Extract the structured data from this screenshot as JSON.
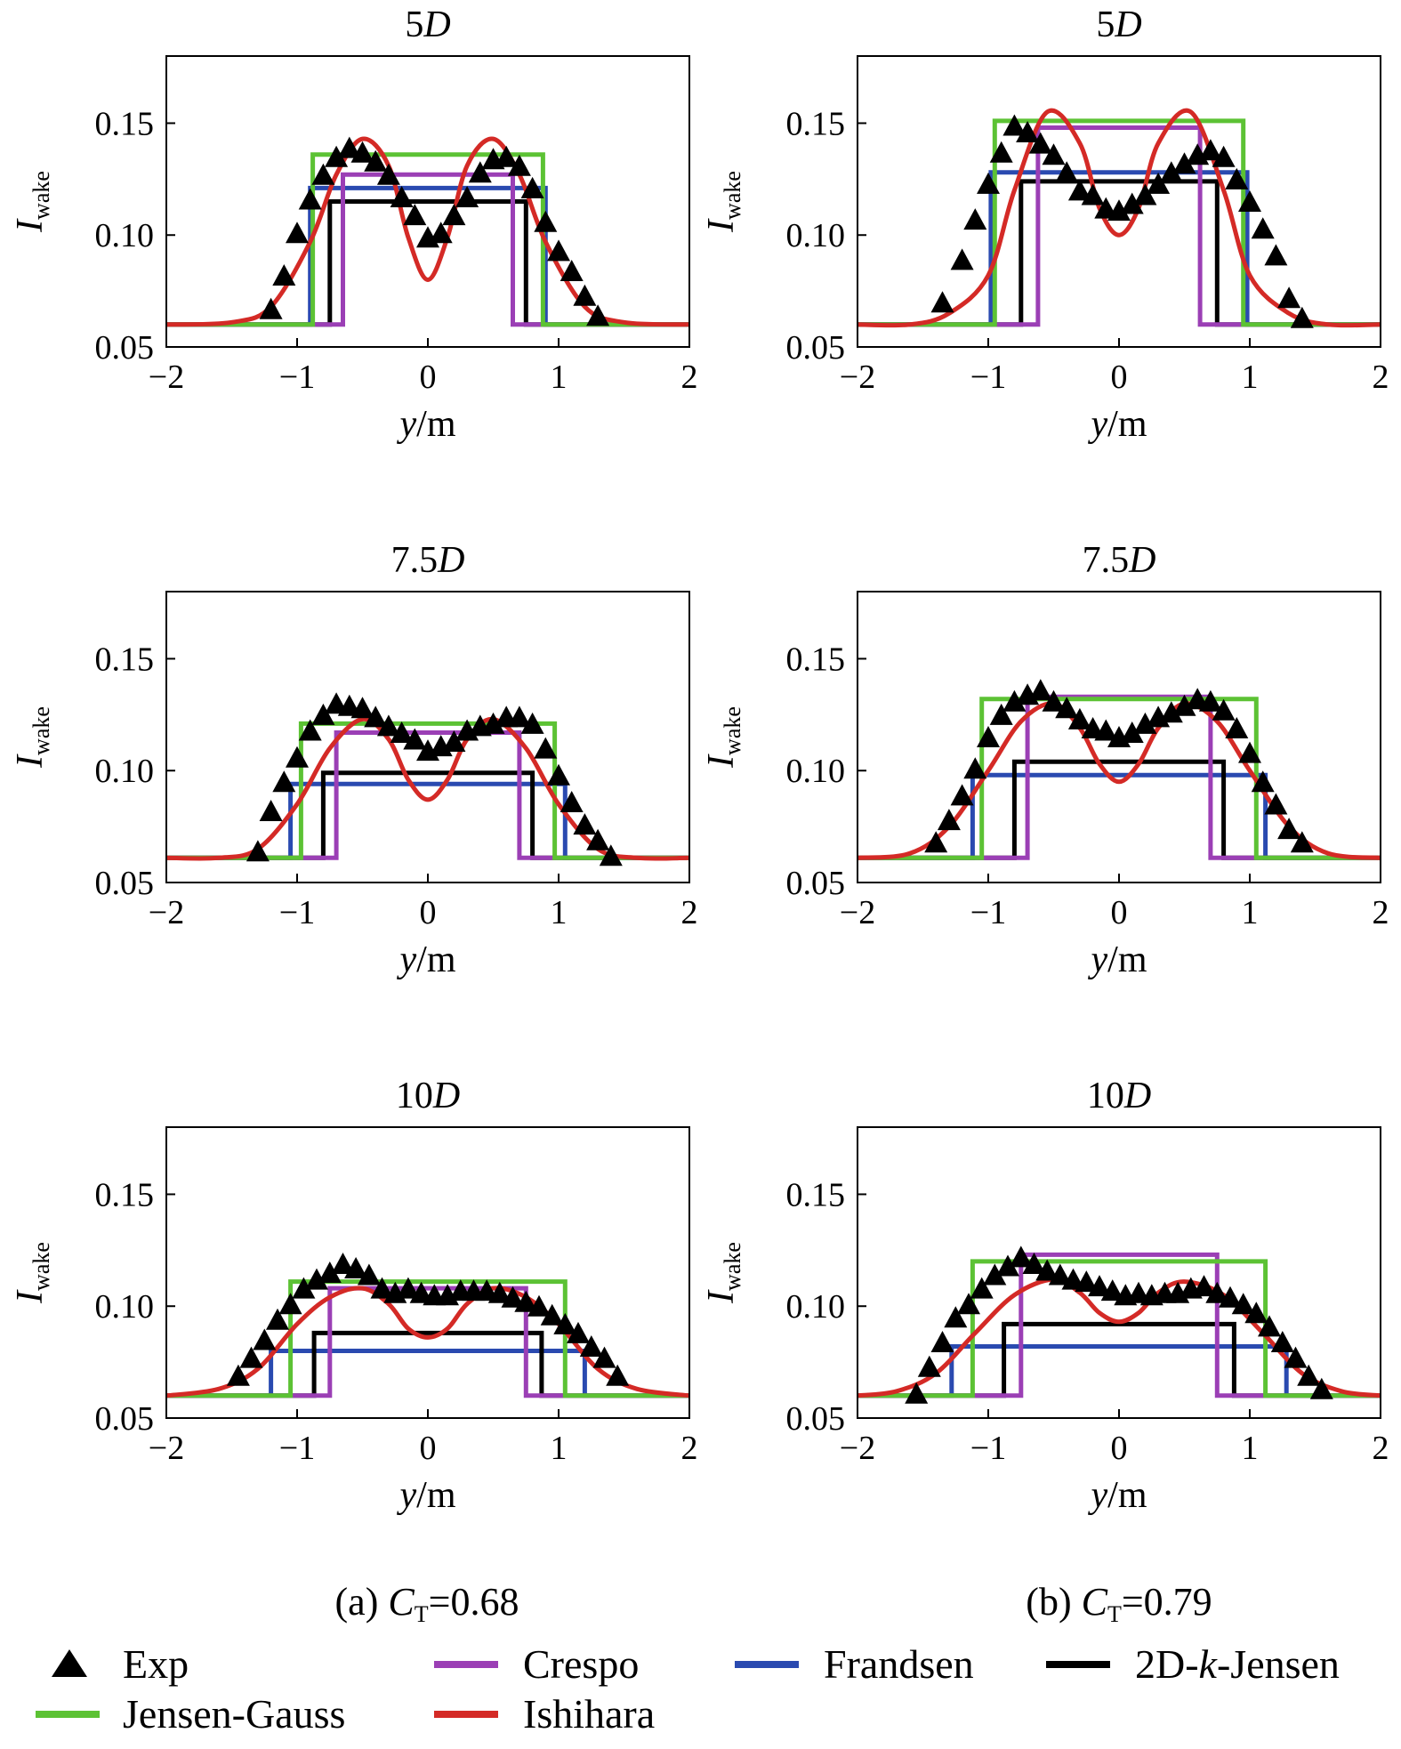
{
  "figure": {
    "captions": [
      {
        "prefix": "(a) ",
        "var": "C",
        "sub": "T",
        "value": "=0.68"
      },
      {
        "prefix": "(b) ",
        "var": "C",
        "sub": "T",
        "value": "=0.79"
      }
    ],
    "legend": [
      {
        "label": "Exp",
        "marker": "triangle",
        "color": "#000000"
      },
      {
        "label": "Crespo",
        "marker": "line",
        "color": "#9b3fb5"
      },
      {
        "label": "Frandsen",
        "marker": "line",
        "color": "#2a4ab0"
      },
      {
        "label_parts": [
          "2D-",
          "k",
          "-Jensen"
        ],
        "label": "2D-k-Jensen",
        "marker": "line",
        "color": "#000000"
      },
      {
        "label": "Jensen-Gauss",
        "marker": "line",
        "color": "#5cc234"
      },
      {
        "label": "Ishihara",
        "marker": "line",
        "color": "#d42a26"
      }
    ],
    "colors": {
      "Exp": "#000000",
      "Jensen-Gauss": "#5cc234",
      "Crespo": "#9b3fb5",
      "Frandsen": "#2a4ab0",
      "2D-k-Jensen": "#000000",
      "Ishihara": "#d42a26"
    }
  },
  "chart_data": [
    {
      "type": "line",
      "panel": "a",
      "title_num": "5",
      "title_var": "D",
      "xlabel_var": "y",
      "xlabel_unit": "/m",
      "ylabel_var": "I",
      "ylabel_sub": "wake",
      "xlim": [
        -2,
        2
      ],
      "ylim": [
        0.05,
        0.18
      ],
      "xticks": [
        "−2",
        "−1",
        "0",
        "1",
        "2"
      ],
      "yticks": [
        "0.05",
        "0.10",
        "0.15"
      ],
      "ambient": 0.06,
      "steps": {
        "Jensen-Gauss": {
          "half_width": 0.88,
          "value": 0.136
        },
        "Crespo": {
          "half_width": 0.65,
          "value": 0.127
        },
        "Frandsen": {
          "half_width": 0.9,
          "value": 0.121
        },
        "2D-k-Jensen": {
          "half_width": 0.75,
          "value": 0.115
        }
      },
      "ishihara": {
        "x": [
          -1.5,
          -1.2,
          -0.9,
          -0.7,
          -0.5,
          -0.3,
          -0.15,
          0,
          0.15,
          0.3,
          0.5,
          0.7,
          0.9,
          1.2,
          1.5
        ],
        "y": [
          0.061,
          0.068,
          0.097,
          0.127,
          0.143,
          0.131,
          0.099,
          0.08,
          0.099,
          0.131,
          0.143,
          0.127,
          0.097,
          0.068,
          0.061
        ]
      },
      "exp": {
        "x": [
          -1.2,
          -1.1,
          -1.0,
          -0.9,
          -0.8,
          -0.7,
          -0.6,
          -0.5,
          -0.4,
          -0.3,
          -0.2,
          -0.1,
          0.0,
          0.1,
          0.2,
          0.3,
          0.4,
          0.5,
          0.6,
          0.7,
          0.8,
          0.9,
          1.0,
          1.1,
          1.2,
          1.3
        ],
        "y": [
          0.066,
          0.081,
          0.1,
          0.115,
          0.126,
          0.134,
          0.138,
          0.136,
          0.132,
          0.126,
          0.116,
          0.108,
          0.098,
          0.1,
          0.108,
          0.116,
          0.127,
          0.133,
          0.134,
          0.13,
          0.12,
          0.105,
          0.092,
          0.083,
          0.072,
          0.063
        ]
      }
    },
    {
      "type": "line",
      "panel": "b",
      "title_num": "5",
      "title_var": "D",
      "xlabel_var": "y",
      "xlabel_unit": "/m",
      "ylabel_var": "I",
      "ylabel_sub": "wake",
      "xlim": [
        -2,
        2
      ],
      "ylim": [
        0.05,
        0.18
      ],
      "xticks": [
        "−2",
        "−1",
        "0",
        "1",
        "2"
      ],
      "yticks": [
        "0.05",
        "0.10",
        "0.15"
      ],
      "ambient": 0.06,
      "steps": {
        "Jensen-Gauss": {
          "half_width": 0.95,
          "value": 0.151
        },
        "Crespo": {
          "half_width": 0.62,
          "value": 0.148
        },
        "Frandsen": {
          "half_width": 0.98,
          "value": 0.128
        },
        "2D-k-Jensen": {
          "half_width": 0.75,
          "value": 0.124
        }
      },
      "ishihara": {
        "x": [
          -1.6,
          -1.3,
          -1.0,
          -0.8,
          -0.55,
          -0.3,
          -0.15,
          0,
          0.15,
          0.3,
          0.55,
          0.8,
          1.0,
          1.3,
          1.6
        ],
        "y": [
          0.06,
          0.065,
          0.082,
          0.12,
          0.155,
          0.141,
          0.112,
          0.1,
          0.112,
          0.141,
          0.155,
          0.12,
          0.082,
          0.065,
          0.06
        ]
      },
      "exp": {
        "x": [
          -1.35,
          -1.2,
          -1.1,
          -1.0,
          -0.9,
          -0.8,
          -0.7,
          -0.6,
          -0.5,
          -0.4,
          -0.3,
          -0.2,
          -0.1,
          0.0,
          0.1,
          0.2,
          0.3,
          0.4,
          0.5,
          0.6,
          0.7,
          0.8,
          0.9,
          1.0,
          1.1,
          1.2,
          1.3,
          1.4
        ],
        "y": [
          0.069,
          0.088,
          0.106,
          0.122,
          0.136,
          0.148,
          0.145,
          0.14,
          0.135,
          0.127,
          0.119,
          0.117,
          0.111,
          0.11,
          0.113,
          0.117,
          0.122,
          0.127,
          0.131,
          0.135,
          0.137,
          0.134,
          0.124,
          0.114,
          0.102,
          0.09,
          0.071,
          0.062
        ]
      }
    },
    {
      "type": "line",
      "panel": "a",
      "title_num": "7.5",
      "title_var": "D",
      "xlabel_var": "y",
      "xlabel_unit": "/m",
      "ylabel_var": "I",
      "ylabel_sub": "wake",
      "xlim": [
        -2,
        2
      ],
      "ylim": [
        0.05,
        0.18
      ],
      "xticks": [
        "−2",
        "−1",
        "0",
        "1",
        "2"
      ],
      "yticks": [
        "0.05",
        "0.10",
        "0.15"
      ],
      "ambient": 0.061,
      "steps": {
        "Jensen-Gauss": {
          "half_width": 0.97,
          "value": 0.121
        },
        "Crespo": {
          "half_width": 0.7,
          "value": 0.117
        },
        "Frandsen": {
          "half_width": 1.05,
          "value": 0.094
        },
        "2D-k-Jensen": {
          "half_width": 0.8,
          "value": 0.099
        }
      },
      "ishihara": {
        "x": [
          -1.6,
          -1.3,
          -1.0,
          -0.75,
          -0.5,
          -0.3,
          -0.15,
          0,
          0.15,
          0.3,
          0.5,
          0.75,
          1.0,
          1.3,
          1.6
        ],
        "y": [
          0.061,
          0.065,
          0.085,
          0.11,
          0.123,
          0.114,
          0.096,
          0.087,
          0.096,
          0.114,
          0.123,
          0.11,
          0.085,
          0.065,
          0.061
        ]
      },
      "exp": {
        "x": [
          -1.3,
          -1.2,
          -1.1,
          -1.0,
          -0.9,
          -0.8,
          -0.7,
          -0.6,
          -0.5,
          -0.4,
          -0.3,
          -0.2,
          -0.1,
          0.0,
          0.1,
          0.2,
          0.3,
          0.4,
          0.5,
          0.6,
          0.7,
          0.8,
          0.9,
          1.0,
          1.1,
          1.2,
          1.3,
          1.4
        ],
        "y": [
          0.063,
          0.081,
          0.094,
          0.105,
          0.117,
          0.124,
          0.129,
          0.128,
          0.127,
          0.123,
          0.119,
          0.116,
          0.113,
          0.108,
          0.11,
          0.112,
          0.117,
          0.119,
          0.12,
          0.123,
          0.123,
          0.12,
          0.109,
          0.097,
          0.085,
          0.075,
          0.068,
          0.061
        ]
      }
    },
    {
      "type": "line",
      "panel": "b",
      "title_num": "7.5",
      "title_var": "D",
      "xlabel_var": "y",
      "xlabel_unit": "/m",
      "ylabel_var": "I",
      "ylabel_sub": "wake",
      "xlim": [
        -2,
        2
      ],
      "ylim": [
        0.05,
        0.18
      ],
      "xticks": [
        "−2",
        "−1",
        "0",
        "1",
        "2"
      ],
      "yticks": [
        "0.05",
        "0.10",
        "0.15"
      ],
      "ambient": 0.061,
      "steps": {
        "Jensen-Gauss": {
          "half_width": 1.05,
          "value": 0.132
        },
        "Crespo": {
          "half_width": 0.7,
          "value": 0.133
        },
        "Frandsen": {
          "half_width": 1.12,
          "value": 0.098
        },
        "2D-k-Jensen": {
          "half_width": 0.8,
          "value": 0.104
        }
      },
      "ishihara": {
        "x": [
          -2.0,
          -1.6,
          -1.3,
          -1.0,
          -0.75,
          -0.5,
          -0.3,
          -0.15,
          0,
          0.15,
          0.3,
          0.5,
          0.75,
          1.0,
          1.3,
          1.6,
          2.0
        ],
        "y": [
          0.061,
          0.063,
          0.075,
          0.1,
          0.122,
          0.13,
          0.119,
          0.103,
          0.095,
          0.103,
          0.119,
          0.13,
          0.122,
          0.1,
          0.075,
          0.063,
          0.061
        ]
      },
      "exp": {
        "x": [
          -1.4,
          -1.3,
          -1.2,
          -1.1,
          -1.0,
          -0.9,
          -0.8,
          -0.7,
          -0.6,
          -0.5,
          -0.4,
          -0.3,
          -0.2,
          -0.1,
          0.0,
          0.1,
          0.2,
          0.3,
          0.4,
          0.5,
          0.6,
          0.7,
          0.8,
          0.9,
          1.0,
          1.1,
          1.2,
          1.3,
          1.4
        ],
        "y": [
          0.067,
          0.077,
          0.088,
          0.1,
          0.114,
          0.124,
          0.13,
          0.133,
          0.135,
          0.13,
          0.127,
          0.122,
          0.118,
          0.117,
          0.114,
          0.116,
          0.12,
          0.123,
          0.125,
          0.128,
          0.131,
          0.13,
          0.126,
          0.118,
          0.107,
          0.094,
          0.084,
          0.073,
          0.067
        ]
      }
    },
    {
      "type": "line",
      "panel": "a",
      "title_num": "10",
      "title_var": "D",
      "xlabel_var": "y",
      "xlabel_unit": "/m",
      "ylabel_var": "I",
      "ylabel_sub": "wake",
      "xlim": [
        -2,
        2
      ],
      "ylim": [
        0.05,
        0.18
      ],
      "xticks": [
        "−2",
        "−1",
        "0",
        "1",
        "2"
      ],
      "yticks": [
        "0.05",
        "0.10",
        "0.15"
      ],
      "ambient": 0.06,
      "steps": {
        "Jensen-Gauss": {
          "half_width": 1.05,
          "value": 0.111
        },
        "Crespo": {
          "half_width": 0.75,
          "value": 0.108
        },
        "Frandsen": {
          "half_width": 1.2,
          "value": 0.08
        },
        "2D-k-Jensen": {
          "half_width": 0.87,
          "value": 0.088
        }
      },
      "ishihara": {
        "x": [
          -2.0,
          -1.6,
          -1.3,
          -1.0,
          -0.75,
          -0.5,
          -0.3,
          -0.15,
          0,
          0.15,
          0.3,
          0.5,
          0.75,
          1.0,
          1.3,
          1.6,
          2.0
        ],
        "y": [
          0.06,
          0.063,
          0.072,
          0.092,
          0.104,
          0.108,
          0.101,
          0.09,
          0.086,
          0.09,
          0.101,
          0.108,
          0.104,
          0.092,
          0.072,
          0.063,
          0.06
        ]
      },
      "exp": {
        "x": [
          -1.45,
          -1.35,
          -1.25,
          -1.15,
          -1.05,
          -0.95,
          -0.85,
          -0.75,
          -0.65,
          -0.55,
          -0.45,
          -0.35,
          -0.25,
          -0.15,
          -0.05,
          0.05,
          0.15,
          0.25,
          0.35,
          0.45,
          0.55,
          0.65,
          0.75,
          0.85,
          0.95,
          1.05,
          1.15,
          1.25,
          1.35,
          1.45
        ],
        "y": [
          0.068,
          0.076,
          0.084,
          0.093,
          0.1,
          0.107,
          0.111,
          0.114,
          0.118,
          0.116,
          0.113,
          0.107,
          0.105,
          0.107,
          0.105,
          0.104,
          0.104,
          0.106,
          0.106,
          0.106,
          0.105,
          0.103,
          0.101,
          0.099,
          0.095,
          0.091,
          0.087,
          0.081,
          0.076,
          0.068
        ]
      }
    },
    {
      "type": "line",
      "panel": "b",
      "title_num": "10",
      "title_var": "D",
      "xlabel_var": "y",
      "xlabel_unit": "/m",
      "ylabel_var": "I",
      "ylabel_sub": "wake",
      "xlim": [
        -2,
        2
      ],
      "ylim": [
        0.05,
        0.18
      ],
      "xticks": [
        "−2",
        "−1",
        "0",
        "1",
        "2"
      ],
      "yticks": [
        "0.05",
        "0.10",
        "0.15"
      ],
      "ambient": 0.06,
      "steps": {
        "Jensen-Gauss": {
          "half_width": 1.12,
          "value": 0.12
        },
        "Crespo": {
          "half_width": 0.75,
          "value": 0.123
        },
        "Frandsen": {
          "half_width": 1.28,
          "value": 0.082
        },
        "2D-k-Jensen": {
          "half_width": 0.88,
          "value": 0.092
        }
      },
      "ishihara": {
        "x": [
          -2.0,
          -1.7,
          -1.4,
          -1.1,
          -0.8,
          -0.5,
          -0.3,
          -0.15,
          0,
          0.15,
          0.3,
          0.5,
          0.8,
          1.1,
          1.4,
          1.7,
          2.0
        ],
        "y": [
          0.06,
          0.062,
          0.07,
          0.088,
          0.105,
          0.112,
          0.106,
          0.097,
          0.093,
          0.097,
          0.106,
          0.111,
          0.105,
          0.088,
          0.07,
          0.062,
          0.06
        ]
      },
      "exp": {
        "x": [
          -1.55,
          -1.45,
          -1.35,
          -1.25,
          -1.15,
          -1.05,
          -0.95,
          -0.85,
          -0.75,
          -0.65,
          -0.55,
          -0.45,
          -0.35,
          -0.25,
          -0.15,
          -0.05,
          0.05,
          0.15,
          0.25,
          0.35,
          0.45,
          0.55,
          0.65,
          0.75,
          0.85,
          0.95,
          1.05,
          1.15,
          1.25,
          1.35,
          1.45,
          1.55
        ],
        "y": [
          0.06,
          0.072,
          0.083,
          0.094,
          0.1,
          0.107,
          0.113,
          0.117,
          0.121,
          0.118,
          0.115,
          0.113,
          0.111,
          0.11,
          0.108,
          0.106,
          0.104,
          0.105,
          0.104,
          0.105,
          0.105,
          0.107,
          0.108,
          0.105,
          0.103,
          0.1,
          0.096,
          0.09,
          0.083,
          0.076,
          0.068,
          0.062
        ]
      }
    }
  ]
}
